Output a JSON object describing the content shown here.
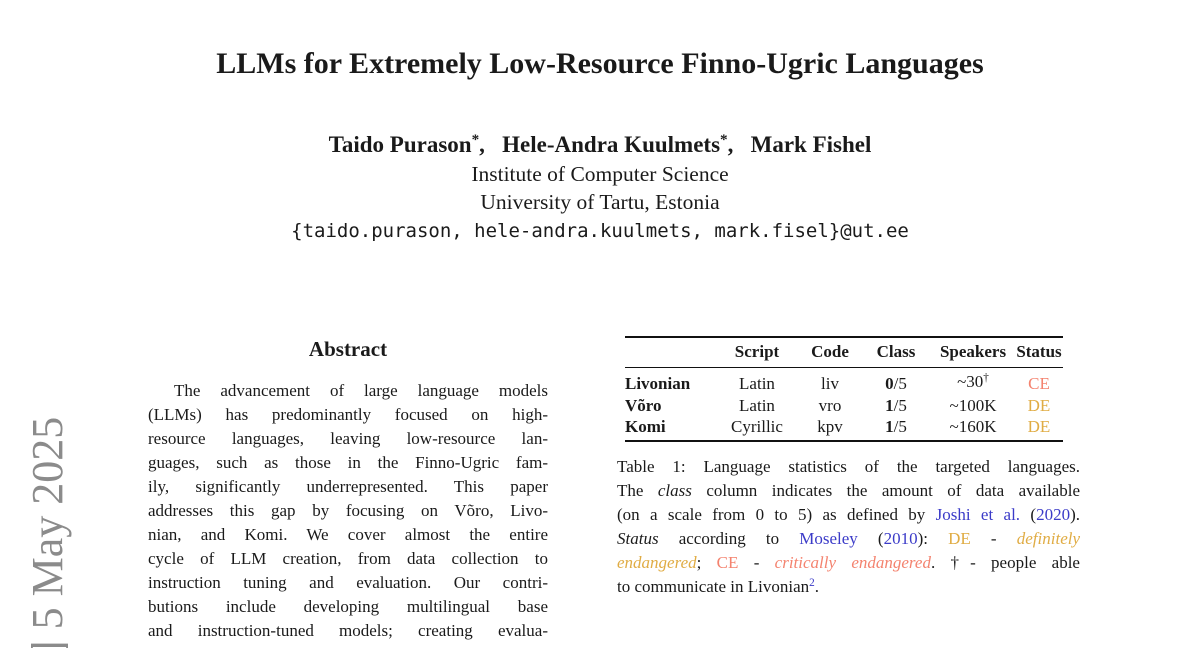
{
  "watermark": {
    "text": "] 5 May 2025",
    "color": "#8b8b8b"
  },
  "header": {
    "title": "LLMs for Extremely Low-Resource Finno-Ugric Languages",
    "authors_segments": [
      {
        "text": "Taido Purason"
      },
      {
        "text": "*",
        "super": true
      },
      {
        "text": ",  "
      },
      {
        "text": "Hele-Andra Kuulmets"
      },
      {
        "text": "*",
        "super": true
      },
      {
        "text": ",  "
      },
      {
        "text": "Mark Fishel"
      }
    ],
    "affiliation1": "Institute of Computer Science",
    "affiliation2": "University of Tartu, Estonia",
    "email": "{taido.purason, hele-andra.kuulmets, mark.fisel}@ut.ee"
  },
  "abstract": {
    "heading": "Abstract",
    "lines": [
      "The advancement of large language models",
      "(LLMs) has predominantly focused on high-",
      "resource languages, leaving low-resource lan-",
      "guages, such as those in the Finno-Ugric fam-",
      "ily, significantly underrepresented. This paper",
      "addresses this gap by focusing on Võro, Livo-",
      "nian, and Komi.  We cover almost the entire",
      "cycle of LLM creation, from data collection to",
      "instruction tuning and evaluation.  Our contri-",
      "butions include developing multilingual base",
      "and instruction-tuned models; creating evalua-"
    ]
  },
  "colors": {
    "status_ce": "#F4836F",
    "status_de": "#E0AC44",
    "citation_link": "#3B3BC8",
    "body_text": "#1a1a1a",
    "watermark_gray": "#8b8b8b"
  },
  "table": {
    "headers": [
      "",
      "Script",
      "Code",
      "Class",
      "Speakers",
      "Status"
    ],
    "rows": [
      {
        "name": "Livonian",
        "script": "Latin",
        "code": "liv",
        "cls": [
          {
            "text": "0",
            "bold": true
          },
          {
            "text": "/5"
          }
        ],
        "speakers": [
          {
            "text": "~30"
          },
          {
            "text": "†",
            "super": true
          }
        ],
        "status": [
          {
            "text": "CE",
            "color": "#F4836F",
            "name": "status-badge-ce"
          }
        ]
      },
      {
        "name": "Võro",
        "script": "Latin",
        "code": "vro",
        "cls": [
          {
            "text": "1",
            "bold": true
          },
          {
            "text": "/5"
          }
        ],
        "speakers": [
          {
            "text": "~100K"
          }
        ],
        "status": [
          {
            "text": "DE",
            "color": "#E0AC44",
            "name": "status-badge-de"
          }
        ]
      },
      {
        "name": "Komi",
        "script": "Cyrillic",
        "code": "kpv",
        "cls": [
          {
            "text": "1",
            "bold": true
          },
          {
            "text": "/5"
          }
        ],
        "speakers": [
          {
            "text": "~160K"
          }
        ],
        "status": [
          {
            "text": "DE",
            "color": "#E0AC44",
            "name": "status-badge-de"
          }
        ]
      }
    ]
  },
  "caption": {
    "lines": [
      [
        {
          "text": "Table 1: Language statistics of the targeted languages."
        }
      ],
      [
        {
          "text": "The "
        },
        {
          "text": "class",
          "italic": true
        },
        {
          "text": " column indicates the amount of data available"
        }
      ],
      [
        {
          "text": "(on a scale from 0 to 5) as defined by "
        },
        {
          "text": "Joshi et al.",
          "color": "#3B3BC8",
          "link": true
        },
        {
          "text": " ("
        },
        {
          "text": "2020",
          "color": "#3B3BC8",
          "link": true
        },
        {
          "text": ")."
        }
      ],
      [
        {
          "text": "Status",
          "italic": true
        },
        {
          "text": " according to "
        },
        {
          "text": "Moseley",
          "color": "#3B3BC8",
          "link": true
        },
        {
          "text": " ("
        },
        {
          "text": "2010",
          "color": "#3B3BC8",
          "link": true
        },
        {
          "text": "):  "
        },
        {
          "text": "DE",
          "color": "#E0AC44"
        },
        {
          "text": " - "
        },
        {
          "text": "definitely",
          "color": "#E0AC44",
          "italic": true
        }
      ],
      [
        {
          "text": "endangered",
          "color": "#E0AC44",
          "italic": true
        },
        {
          "text": "; "
        },
        {
          "text": "CE",
          "color": "#F4836F"
        },
        {
          "text": " - "
        },
        {
          "text": "critically endangered",
          "color": "#F4836F",
          "italic": true
        },
        {
          "text": ". †- people able"
        }
      ],
      [
        {
          "text": "to communicate in Livonian"
        },
        {
          "text": "2",
          "color": "#3B3BC8",
          "super": true,
          "link": true
        },
        {
          "text": "."
        }
      ]
    ]
  }
}
